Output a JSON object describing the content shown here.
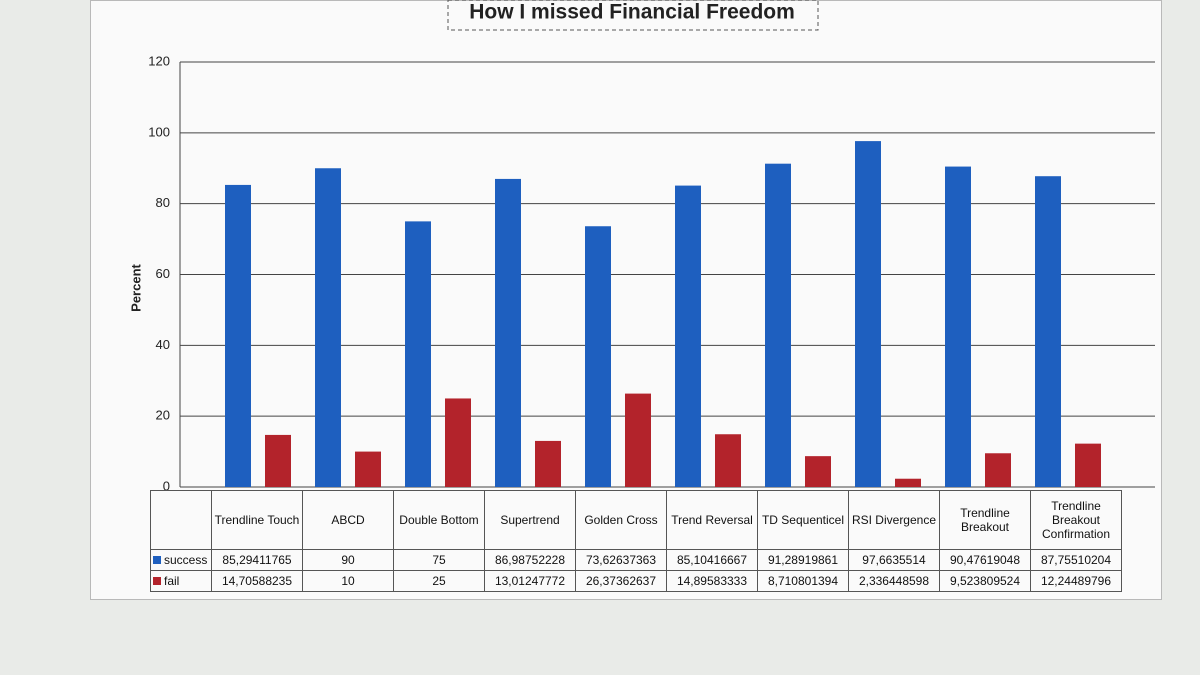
{
  "chart_data": {
    "type": "bar",
    "title": "How I missed Financial Freedom",
    "y_label": "Percent",
    "categories": [
      "Trendline Touch",
      "ABCD",
      "Double Bottom",
      "Supertrend",
      "Golden Cross",
      "Trend Reversal",
      "TD Sequenticel",
      "RSI Divergence",
      "Trendline Breakout",
      "Trendline Breakout Confirmation"
    ],
    "series": [
      {
        "name": "success",
        "color": "#1e5fbf",
        "values": [
          85.29411765,
          90,
          75,
          86.98752228,
          73.62637363,
          85.10416667,
          91.28919861,
          97.6635514,
          90.47619048,
          87.75510204
        ],
        "value_labels": [
          "85,29411765",
          "90",
          "75",
          "86,98752228",
          "73,62637363",
          "85,10416667",
          "91,28919861",
          "97,6635514",
          "90,47619048",
          "87,75510204"
        ]
      },
      {
        "name": "fail",
        "color": "#b3232b",
        "values": [
          14.70588235,
          10,
          25,
          13.01247772,
          26.37362637,
          14.89583333,
          8.710801394,
          2.336448598,
          9.523809524,
          12.24489796
        ],
        "value_labels": [
          "14,70588235",
          "10",
          "25",
          "13,01247772",
          "26,37362637",
          "14,89583333",
          "8,710801394",
          "2,336448598",
          "9,523809524",
          "12,24489796"
        ]
      }
    ],
    "ylim": [
      0,
      120
    ],
    "yticks": [
      0,
      20,
      40,
      60,
      80,
      100,
      120
    ],
    "grid": true,
    "data_table": true
  }
}
